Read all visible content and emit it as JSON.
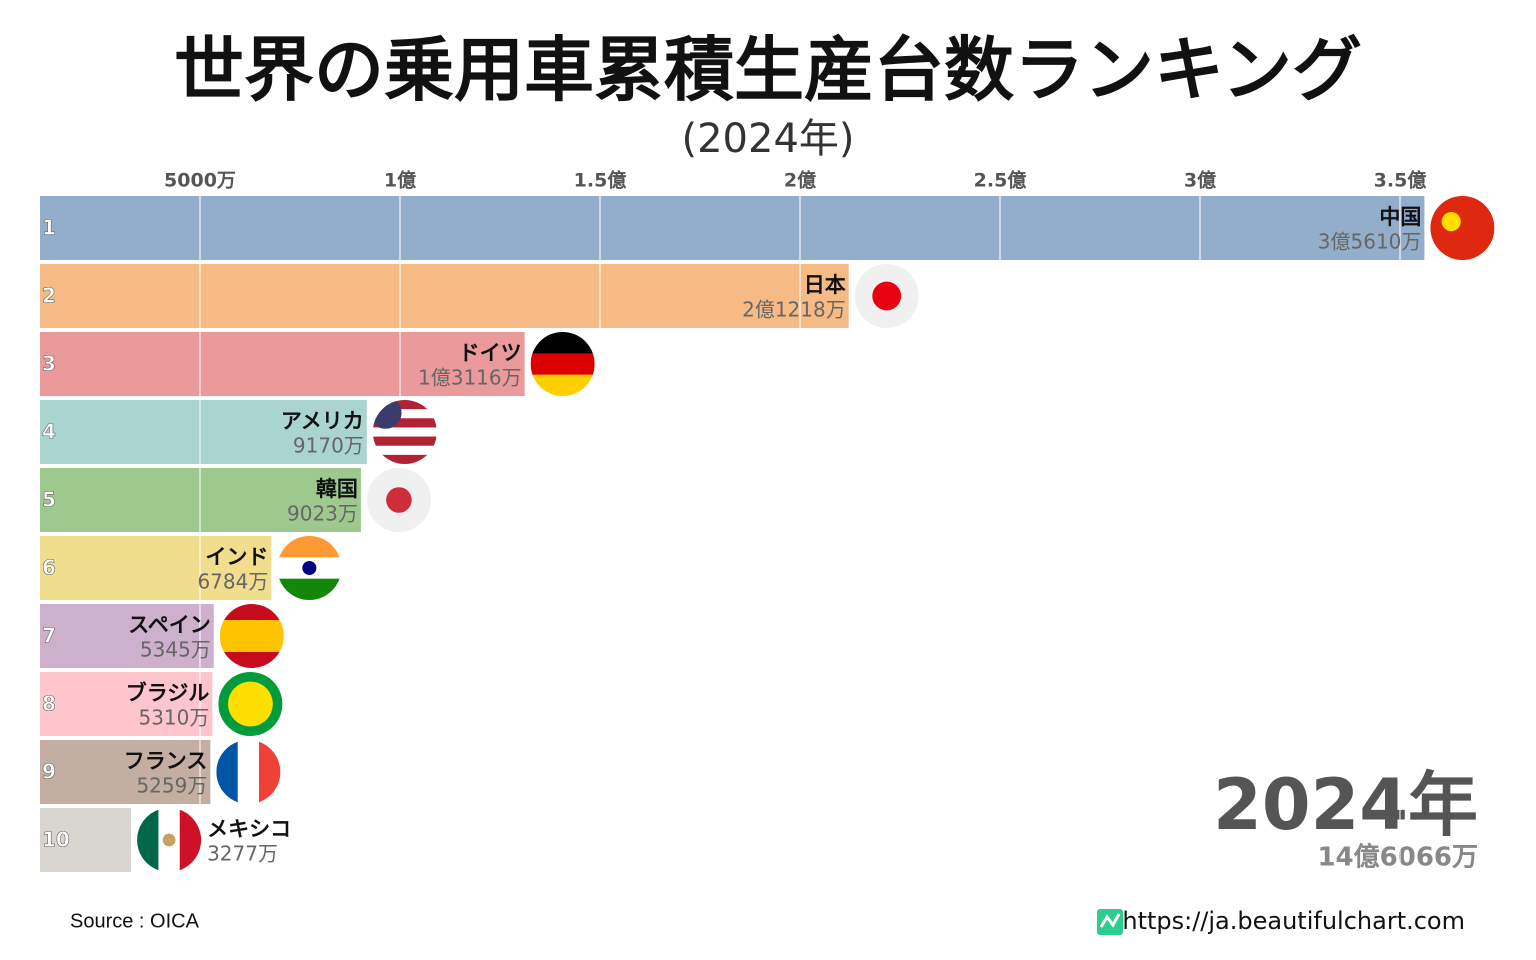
{
  "chart_data": {
    "type": "bar",
    "orientation": "horizontal",
    "title": "世界の乗用車累積生産台数ランキング",
    "subtitle": "(2024年)",
    "ranks": [
      1,
      2,
      3,
      4,
      5,
      6,
      7,
      8,
      9,
      10
    ],
    "categories": [
      "中国",
      "日本",
      "ドイツ",
      "アメリカ",
      "韓国",
      "インド",
      "スペイン",
      "ブラジル",
      "フランス",
      "メキシコ"
    ],
    "values": [
      35610,
      21218,
      13116,
      9170,
      9023,
      6784,
      5345,
      5310,
      5259,
      3277
    ],
    "value_labels": [
      "3億5610万",
      "2億1218万",
      "1億3116万",
      "9170万",
      "9023万",
      "6784万",
      "5345万",
      "5310万",
      "5259万",
      "3277万"
    ],
    "colors": [
      "#93aecb",
      "#f6bb84",
      "#ea9a9b",
      "#a9d4d0",
      "#9dc98e",
      "#f1dd8e",
      "#cdb0cb",
      "#fec6cc",
      "#c4aea1",
      "#d8d4d0"
    ],
    "xlim": [
      0,
      38400
    ],
    "xticks": [
      {
        "value": 5000,
        "label": "5000万"
      },
      {
        "value": 10000,
        "label": "1億"
      },
      {
        "value": 15000,
        "label": "1.5億"
      },
      {
        "value": 20000,
        "label": "2億"
      },
      {
        "value": 25000,
        "label": "2.5億"
      },
      {
        "value": 30000,
        "label": "3億"
      },
      {
        "value": 35000,
        "label": "3.5億"
      }
    ],
    "grid": true,
    "year_label": "2024年",
    "total_label": "14億6066万",
    "source": "Source : OICA",
    "url": "https://ja.beautifulchart.com"
  }
}
